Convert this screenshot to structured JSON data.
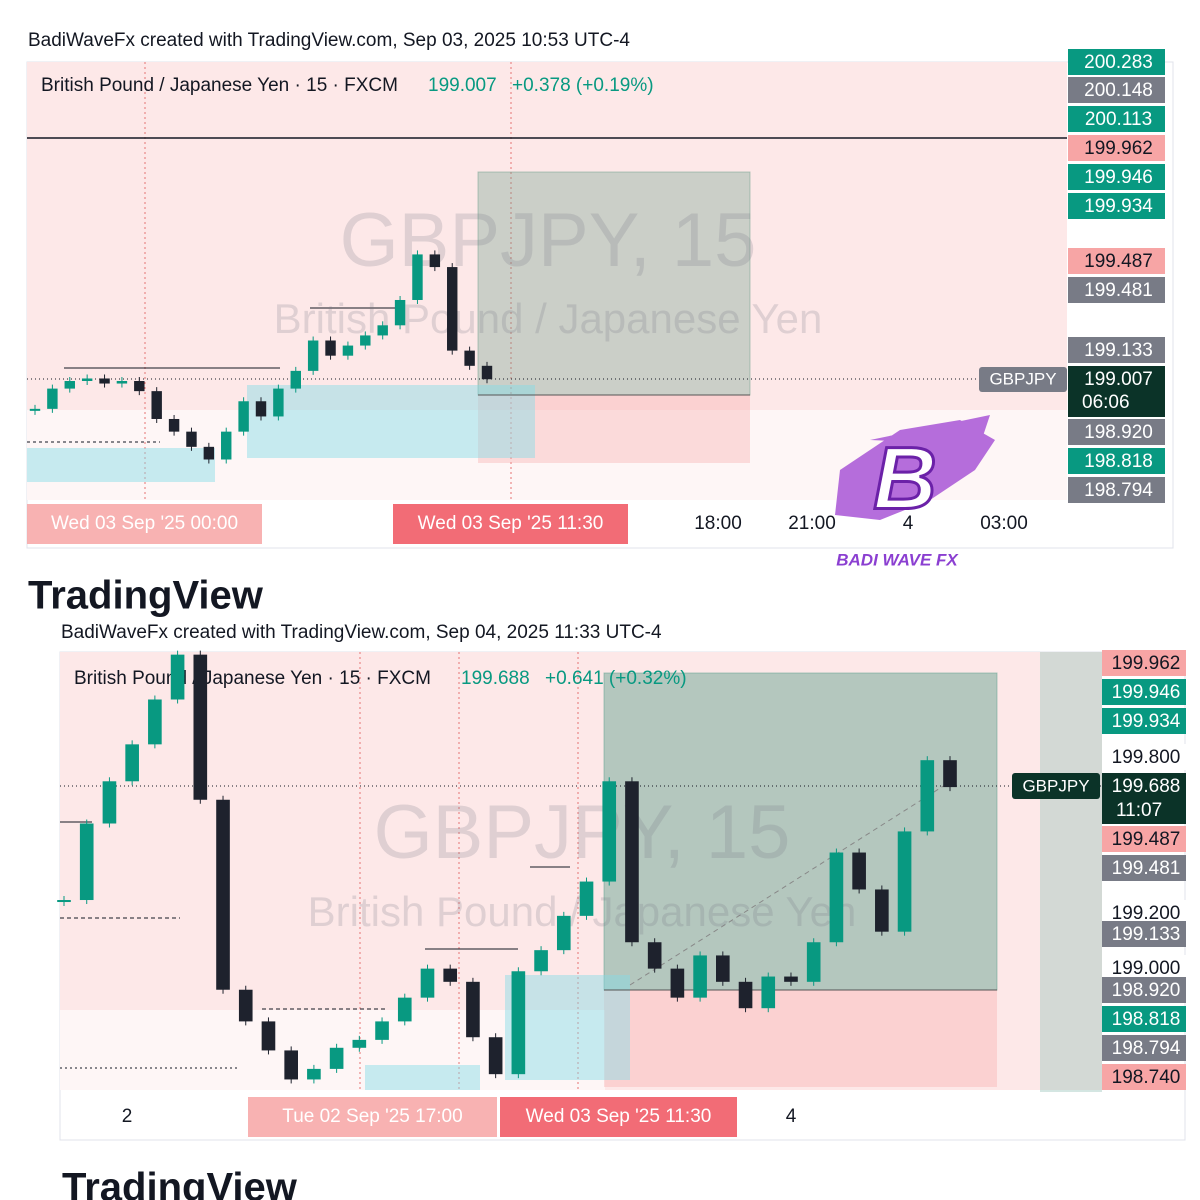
{
  "panels": [
    {
      "caption": "BadiWaveFx created with TradingView.com, Sep 03, 2025 10:53 UTC-4",
      "symbol": "British Pound / Japanese Yen · 15 · FXCM",
      "last": "199.007",
      "change": "+0.378 (+0.19%)",
      "watermark": "GBPJPY, 15",
      "watermark_sub": "British Pound / Japanese Yen",
      "ticker": "GBPJPY",
      "countdown": "06:06",
      "price_tags": [
        {
          "label": "200.283",
          "color": "#089981"
        },
        {
          "label": "200.148",
          "color": "#787b86"
        },
        {
          "label": "200.113",
          "color": "#089981"
        },
        {
          "label": "199.962",
          "color": "#f7a5a5"
        },
        {
          "label": "199.946",
          "color": "#089981"
        },
        {
          "label": "199.934",
          "color": "#089981"
        },
        {
          "label": "199.487",
          "color": "#f7a5a5"
        },
        {
          "label": "199.481",
          "color": "#787b86"
        },
        {
          "label": "199.133",
          "color": "#787b86"
        },
        {
          "label": "199.007",
          "color": "#0b3328"
        },
        {
          "label": "198.920",
          "color": "#787b86"
        },
        {
          "label": "198.818",
          "color": "#089981"
        },
        {
          "label": "198.794",
          "color": "#787b86"
        }
      ],
      "time_labels": [
        "Wed 03 Sep '25   00:00",
        "Wed 03 Sep '25   11:30",
        "18:00",
        "21:00",
        "4",
        "03:00"
      ],
      "footer": "TradingView"
    },
    {
      "caption": "BadiWaveFx created with TradingView.com, Sep 04, 2025 11:33 UTC-4",
      "symbol": "British Pound / Japanese Yen · 15 · FXCM",
      "last": "199.688",
      "change": "+0.641 (+0.32%)",
      "watermark": "GBPJPY, 15",
      "watermark_sub": "British Pound / Japanese Yen",
      "ticker": "GBPJPY",
      "countdown": "11:07",
      "price_tags": [
        {
          "label": "199.962",
          "color": "#f7a5a5"
        },
        {
          "label": "199.946",
          "color": "#089981"
        },
        {
          "label": "199.934",
          "color": "#089981"
        },
        {
          "label": "199.800",
          "color": "#ffffff"
        },
        {
          "label": "199.688",
          "color": "#0b3328"
        },
        {
          "label": "199.487",
          "color": "#f7a5a5"
        },
        {
          "label": "199.481",
          "color": "#787b86"
        },
        {
          "label": "199.200",
          "color": "#ffffff"
        },
        {
          "label": "199.133",
          "color": "#787b86"
        },
        {
          "label": "199.000",
          "color": "#ffffff"
        },
        {
          "label": "198.920",
          "color": "#787b86"
        },
        {
          "label": "198.818",
          "color": "#089981"
        },
        {
          "label": "198.794",
          "color": "#787b86"
        },
        {
          "label": "198.740",
          "color": "#f7a5a5"
        }
      ],
      "time_labels": [
        "2",
        "Tue 02 Sep '25   17:00",
        "Wed 03 Sep '25   11:30",
        "4"
      ],
      "footer": "TradingView"
    }
  ],
  "logo": {
    "letter": "B",
    "text": "BADI WAVE FX"
  },
  "chart_data": [
    {
      "type": "candlestick",
      "color_up": "#089981",
      "color_down": "#1e222d",
      "ylim": [
        198.53,
        200.26
      ],
      "closes": [
        198.89,
        198.97,
        199.0,
        199.01,
        198.99,
        199.0,
        198.96,
        198.85,
        198.8,
        198.74,
        198.69,
        198.8,
        198.92,
        198.86,
        198.97,
        199.04,
        199.16,
        199.1,
        199.14,
        199.18,
        199.22,
        199.32,
        199.5,
        199.45,
        199.12,
        199.06,
        199.007
      ]
    },
    {
      "type": "candlestick",
      "color_up": "#089981",
      "color_down": "#1e222d",
      "ylim": [
        198.54,
        200.2
      ],
      "closes": [
        199.26,
        199.55,
        199.71,
        199.85,
        200.02,
        200.19,
        199.64,
        198.92,
        198.8,
        198.69,
        198.58,
        198.62,
        198.7,
        198.73,
        198.8,
        198.89,
        199.0,
        198.95,
        198.74,
        198.6,
        198.99,
        199.07,
        199.2,
        199.33,
        199.71,
        199.1,
        199.0,
        198.89,
        199.05,
        198.95,
        198.85,
        198.97,
        198.95,
        199.1,
        199.44,
        199.3,
        199.14,
        199.52,
        199.79,
        199.688
      ]
    }
  ]
}
